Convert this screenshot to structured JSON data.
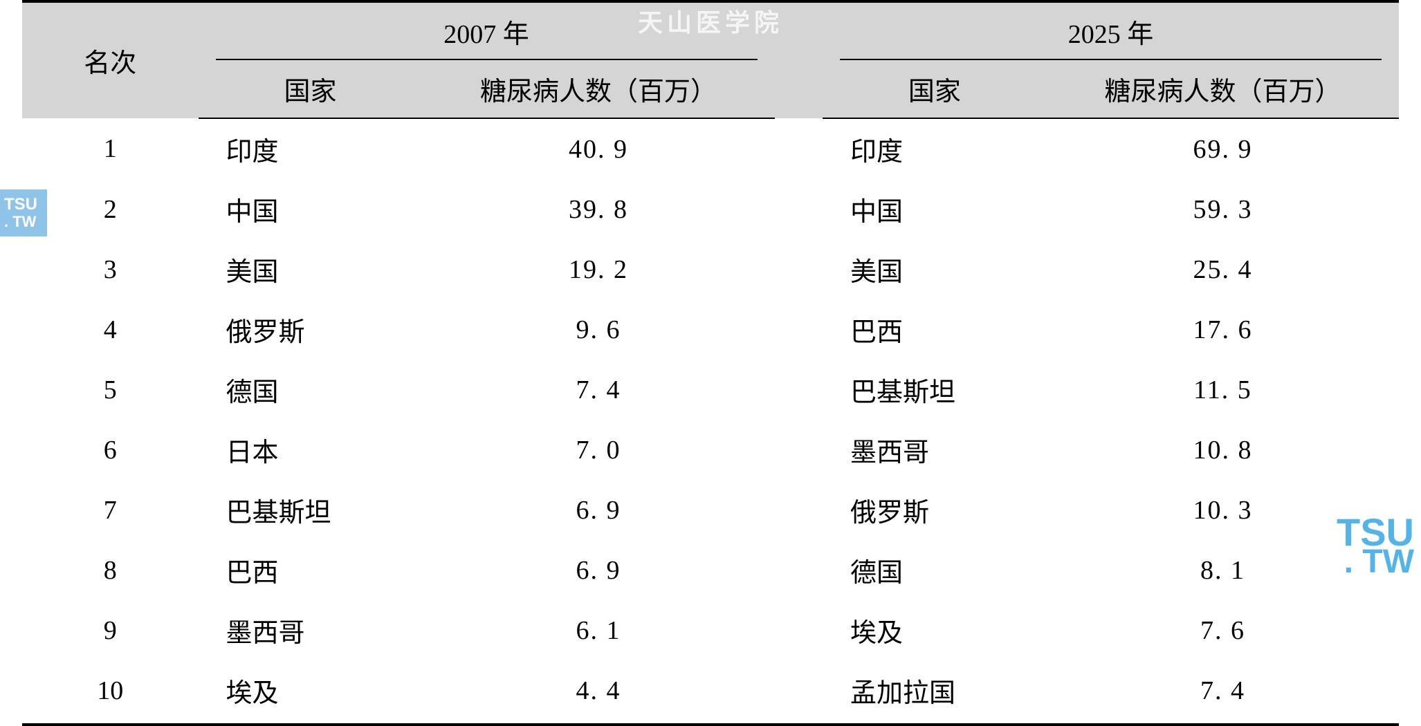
{
  "watermarks": {
    "top_text": "天山医学院",
    "left_line1": "TSU",
    "left_line2": ". TW",
    "right_line1": "TSU",
    "right_line2": ". TW"
  },
  "table": {
    "type": "table",
    "background_color": "#ffffff",
    "header_bg": "#d5d5d5",
    "border_color": "#000000",
    "font_size_body": 38,
    "font_family_cn": "SimSun",
    "font_family_num": "Times New Roman",
    "columns": {
      "rank": "名次",
      "year_2007": "2007 年",
      "year_2025": "2025 年",
      "country": "国家",
      "diabetes_count": "糖尿病人数（百万）"
    },
    "rows": [
      {
        "rank": "1",
        "country_2007": "印度",
        "count_2007": "40. 9",
        "country_2025": "印度",
        "count_2025": "69. 9"
      },
      {
        "rank": "2",
        "country_2007": "中国",
        "count_2007": "39. 8",
        "country_2025": "中国",
        "count_2025": "59. 3"
      },
      {
        "rank": "3",
        "country_2007": "美国",
        "count_2007": "19. 2",
        "country_2025": "美国",
        "count_2025": "25. 4"
      },
      {
        "rank": "4",
        "country_2007": "俄罗斯",
        "count_2007": "9. 6",
        "country_2025": "巴西",
        "count_2025": "17. 6"
      },
      {
        "rank": "5",
        "country_2007": "德国",
        "count_2007": "7. 4",
        "country_2025": "巴基斯坦",
        "count_2025": "11. 5"
      },
      {
        "rank": "6",
        "country_2007": "日本",
        "count_2007": "7. 0",
        "country_2025": "墨西哥",
        "count_2025": "10. 8"
      },
      {
        "rank": "7",
        "country_2007": "巴基斯坦",
        "count_2007": "6. 9",
        "country_2025": "俄罗斯",
        "count_2025": "10. 3"
      },
      {
        "rank": "8",
        "country_2007": "巴西",
        "count_2007": "6. 9",
        "country_2025": "德国",
        "count_2025": "8. 1"
      },
      {
        "rank": "9",
        "country_2007": "墨西哥",
        "count_2007": "6. 1",
        "country_2025": "埃及",
        "count_2025": "7. 6"
      },
      {
        "rank": "10",
        "country_2007": "埃及",
        "count_2007": "4. 4",
        "country_2025": "孟加拉国",
        "count_2025": "7. 4"
      }
    ]
  }
}
